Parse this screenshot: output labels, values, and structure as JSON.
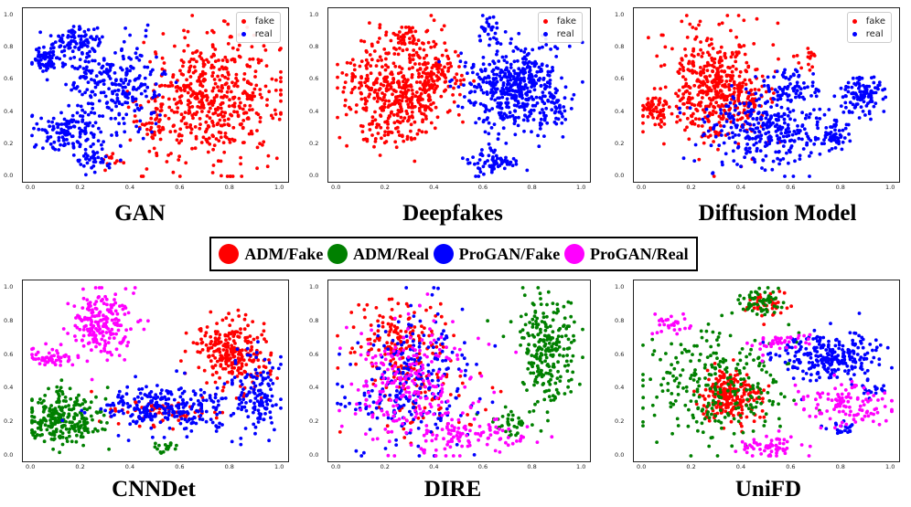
{
  "figure": {
    "top_captions": [
      "GAN",
      "Deepfakes",
      "Diffusion Model"
    ],
    "bottom_captions": [
      "CNNDet",
      "DIRE",
      "UniFD"
    ],
    "shared_legend": [
      {
        "label": "ADM/Fake",
        "color": "#ff0000"
      },
      {
        "label": "ADM/Real",
        "color": "#008000"
      },
      {
        "label": "ProGAN/Fake",
        "color": "#0000ff"
      },
      {
        "label": "ProGAN/Real",
        "color": "#ff00ff"
      }
    ],
    "small_legend": [
      {
        "label": "fake",
        "color": "#ff0000"
      },
      {
        "label": "real",
        "color": "#0000ff"
      }
    ]
  },
  "chart_data": [
    {
      "type": "scatter",
      "title": "GAN",
      "xlim": [
        0,
        1
      ],
      "ylim": [
        0,
        1
      ],
      "xticks": [
        "0.0",
        "0.2",
        "0.4",
        "0.6",
        "0.8",
        "1.0"
      ],
      "yticks": [
        "0.0",
        "0.2",
        "0.4",
        "0.6",
        "0.8",
        "1.0"
      ],
      "legend": [
        "fake",
        "real"
      ],
      "series": [
        {
          "name": "fake",
          "color": "#ff0000",
          "clusters": [
            {
              "cx": 0.72,
              "cy": 0.48,
              "sx": 0.14,
              "sy": 0.19,
              "n": 520
            },
            {
              "cx": 0.32,
              "cy": 0.11,
              "sx": 0.03,
              "sy": 0.03,
              "n": 12
            },
            {
              "cx": 0.48,
              "cy": 0.32,
              "sx": 0.04,
              "sy": 0.06,
              "n": 30
            }
          ]
        },
        {
          "name": "real",
          "color": "#0000ff",
          "clusters": [
            {
              "cx": 0.06,
              "cy": 0.72,
              "sx": 0.03,
              "sy": 0.04,
              "n": 70
            },
            {
              "cx": 0.18,
              "cy": 0.85,
              "sx": 0.05,
              "sy": 0.05,
              "n": 90
            },
            {
              "cx": 0.15,
              "cy": 0.28,
              "sx": 0.06,
              "sy": 0.06,
              "n": 130
            },
            {
              "cx": 0.38,
              "cy": 0.55,
              "sx": 0.08,
              "sy": 0.15,
              "n": 190
            },
            {
              "cx": 0.25,
              "cy": 0.1,
              "sx": 0.03,
              "sy": 0.04,
              "n": 40
            },
            {
              "cx": 0.22,
              "cy": 0.6,
              "sx": 0.06,
              "sy": 0.1,
              "n": 60
            }
          ]
        }
      ]
    },
    {
      "type": "scatter",
      "title": "Deepfakes",
      "xlim": [
        0,
        1
      ],
      "ylim": [
        0,
        1
      ],
      "xticks": [
        "0.0",
        "0.2",
        "0.4",
        "0.6",
        "0.8",
        "1.0"
      ],
      "yticks": [
        "0.0",
        "0.2",
        "0.4",
        "0.6",
        "0.8",
        "1.0"
      ],
      "legend": [
        "fake",
        "real"
      ],
      "series": [
        {
          "name": "fake",
          "color": "#ff0000",
          "clusters": [
            {
              "cx": 0.22,
              "cy": 0.5,
              "sx": 0.1,
              "sy": 0.16,
              "n": 380
            },
            {
              "cx": 0.38,
              "cy": 0.62,
              "sx": 0.06,
              "sy": 0.1,
              "n": 140
            },
            {
              "cx": 0.3,
              "cy": 0.85,
              "sx": 0.06,
              "sy": 0.06,
              "n": 60
            }
          ]
        },
        {
          "name": "real",
          "color": "#0000ff",
          "clusters": [
            {
              "cx": 0.72,
              "cy": 0.55,
              "sx": 0.1,
              "sy": 0.13,
              "n": 460
            },
            {
              "cx": 0.63,
              "cy": 0.08,
              "sx": 0.05,
              "sy": 0.04,
              "n": 70
            },
            {
              "cx": 0.62,
              "cy": 0.92,
              "sx": 0.03,
              "sy": 0.04,
              "n": 30
            },
            {
              "cx": 0.88,
              "cy": 0.4,
              "sx": 0.04,
              "sy": 0.05,
              "n": 30
            }
          ]
        }
      ]
    },
    {
      "type": "scatter",
      "title": "Diffusion Model",
      "xlim": [
        0,
        1
      ],
      "ylim": [
        0,
        1
      ],
      "xticks": [
        "0.0",
        "0.2",
        "0.4",
        "0.6",
        "0.8",
        "1.0"
      ],
      "yticks": [
        "0.0",
        "0.2",
        "0.4",
        "0.6",
        "0.8",
        "1.0"
      ],
      "legend": [
        "fake",
        "real"
      ],
      "series": [
        {
          "name": "fake",
          "color": "#ff0000",
          "clusters": [
            {
              "cx": 0.28,
              "cy": 0.55,
              "sx": 0.09,
              "sy": 0.18,
              "n": 420
            },
            {
              "cx": 0.05,
              "cy": 0.42,
              "sx": 0.03,
              "sy": 0.05,
              "n": 60
            },
            {
              "cx": 0.42,
              "cy": 0.5,
              "sx": 0.06,
              "sy": 0.08,
              "n": 60
            },
            {
              "cx": 0.65,
              "cy": 0.72,
              "sx": 0.03,
              "sy": 0.03,
              "n": 15
            }
          ]
        },
        {
          "name": "real",
          "color": "#0000ff",
          "clusters": [
            {
              "cx": 0.5,
              "cy": 0.3,
              "sx": 0.12,
              "sy": 0.12,
              "n": 330
            },
            {
              "cx": 0.88,
              "cy": 0.5,
              "sx": 0.05,
              "sy": 0.07,
              "n": 110
            },
            {
              "cx": 0.78,
              "cy": 0.25,
              "sx": 0.03,
              "sy": 0.05,
              "n": 50
            },
            {
              "cx": 0.6,
              "cy": 0.55,
              "sx": 0.06,
              "sy": 0.06,
              "n": 60
            }
          ]
        }
      ]
    },
    {
      "type": "scatter",
      "title": "CNNDet",
      "xlim": [
        0,
        1
      ],
      "ylim": [
        0,
        1
      ],
      "xticks": [
        "0.0",
        "0.2",
        "0.4",
        "0.6",
        "0.8",
        "1.0"
      ],
      "yticks": [
        "0.0",
        "0.2",
        "0.4",
        "0.6",
        "0.8",
        "1.0"
      ],
      "legend": [
        "ADM/Fake",
        "ADM/Real",
        "ProGAN/Fake",
        "ProGAN/Real"
      ],
      "series": [
        {
          "name": "ADM/Fake",
          "color": "#ff0000",
          "clusters": [
            {
              "cx": 0.8,
              "cy": 0.6,
              "sx": 0.07,
              "sy": 0.1,
              "n": 260
            },
            {
              "cx": 0.52,
              "cy": 0.25,
              "sx": 0.12,
              "sy": 0.04,
              "n": 60
            }
          ]
        },
        {
          "name": "ADM/Real",
          "color": "#008000",
          "clusters": [
            {
              "cx": 0.12,
              "cy": 0.22,
              "sx": 0.08,
              "sy": 0.08,
              "n": 260
            },
            {
              "cx": 0.55,
              "cy": 0.05,
              "sx": 0.03,
              "sy": 0.02,
              "n": 20
            }
          ]
        },
        {
          "name": "ProGAN/Fake",
          "color": "#0000ff",
          "clusters": [
            {
              "cx": 0.55,
              "cy": 0.28,
              "sx": 0.12,
              "sy": 0.07,
              "n": 260
            },
            {
              "cx": 0.9,
              "cy": 0.35,
              "sx": 0.05,
              "sy": 0.12,
              "n": 130
            }
          ]
        },
        {
          "name": "ProGAN/Real",
          "color": "#ff00ff",
          "clusters": [
            {
              "cx": 0.28,
              "cy": 0.78,
              "sx": 0.06,
              "sy": 0.1,
              "n": 200
            },
            {
              "cx": 0.08,
              "cy": 0.58,
              "sx": 0.04,
              "sy": 0.03,
              "n": 50
            }
          ]
        }
      ]
    },
    {
      "type": "scatter",
      "title": "DIRE",
      "xlim": [
        0,
        1
      ],
      "ylim": [
        0,
        1
      ],
      "xticks": [
        "0.0",
        "0.2",
        "0.4",
        "0.6",
        "0.8",
        "1.0"
      ],
      "yticks": [
        "0.0",
        "0.2",
        "0.4",
        "0.6",
        "0.8",
        "1.0"
      ],
      "legend": [
        "ADM/Fake",
        "ADM/Real",
        "ProGAN/Fake",
        "ProGAN/Real"
      ],
      "series": [
        {
          "name": "ADM/Fake",
          "color": "#ff0000",
          "clusters": [
            {
              "cx": 0.25,
              "cy": 0.68,
              "sx": 0.09,
              "sy": 0.12,
              "n": 160
            },
            {
              "cx": 0.35,
              "cy": 0.35,
              "sx": 0.12,
              "sy": 0.14,
              "n": 80
            }
          ]
        },
        {
          "name": "ADM/Real",
          "color": "#008000",
          "clusters": [
            {
              "cx": 0.85,
              "cy": 0.62,
              "sx": 0.06,
              "sy": 0.16,
              "n": 240
            },
            {
              "cx": 0.72,
              "cy": 0.2,
              "sx": 0.05,
              "sy": 0.04,
              "n": 40
            }
          ]
        },
        {
          "name": "ProGAN/Fake",
          "color": "#0000ff",
          "clusters": [
            {
              "cx": 0.3,
              "cy": 0.45,
              "sx": 0.13,
              "sy": 0.2,
              "n": 260
            }
          ]
        },
        {
          "name": "ProGAN/Real",
          "color": "#ff00ff",
          "clusters": [
            {
              "cx": 0.3,
              "cy": 0.4,
              "sx": 0.14,
              "sy": 0.2,
              "n": 240
            },
            {
              "cx": 0.55,
              "cy": 0.12,
              "sx": 0.12,
              "sy": 0.05,
              "n": 90
            }
          ]
        }
      ]
    },
    {
      "type": "scatter",
      "title": "UniFD",
      "xlim": [
        0,
        1
      ],
      "ylim": [
        0,
        1
      ],
      "xticks": [
        "0.0",
        "0.2",
        "0.4",
        "0.6",
        "0.8",
        "1.0"
      ],
      "yticks": [
        "0.0",
        "0.2",
        "0.4",
        "0.6",
        "0.8",
        "1.0"
      ],
      "legend": [
        "ADM/Fake",
        "ADM/Real",
        "ProGAN/Fake",
        "ProGAN/Real"
      ],
      "series": [
        {
          "name": "ADM/Fake",
          "color": "#ff0000",
          "clusters": [
            {
              "cx": 0.35,
              "cy": 0.35,
              "sx": 0.06,
              "sy": 0.07,
              "n": 230
            },
            {
              "cx": 0.5,
              "cy": 0.9,
              "sx": 0.04,
              "sy": 0.04,
              "n": 40
            }
          ]
        },
        {
          "name": "ADM/Real",
          "color": "#008000",
          "clusters": [
            {
              "cx": 0.28,
              "cy": 0.42,
              "sx": 0.16,
              "sy": 0.16,
              "n": 260
            },
            {
              "cx": 0.48,
              "cy": 0.92,
              "sx": 0.05,
              "sy": 0.04,
              "n": 60
            }
          ]
        },
        {
          "name": "ProGAN/Fake",
          "color": "#0000ff",
          "clusters": [
            {
              "cx": 0.75,
              "cy": 0.58,
              "sx": 0.1,
              "sy": 0.07,
              "n": 260
            },
            {
              "cx": 0.92,
              "cy": 0.38,
              "sx": 0.03,
              "sy": 0.02,
              "n": 20
            },
            {
              "cx": 0.8,
              "cy": 0.17,
              "sx": 0.03,
              "sy": 0.02,
              "n": 20
            }
          ]
        },
        {
          "name": "ProGAN/Real",
          "color": "#ff00ff",
          "clusters": [
            {
              "cx": 0.5,
              "cy": 0.06,
              "sx": 0.06,
              "sy": 0.03,
              "n": 60
            },
            {
              "cx": 0.82,
              "cy": 0.3,
              "sx": 0.1,
              "sy": 0.06,
              "n": 110
            },
            {
              "cx": 0.55,
              "cy": 0.68,
              "sx": 0.06,
              "sy": 0.03,
              "n": 40
            },
            {
              "cx": 0.12,
              "cy": 0.78,
              "sx": 0.04,
              "sy": 0.03,
              "n": 30
            }
          ]
        }
      ]
    }
  ]
}
